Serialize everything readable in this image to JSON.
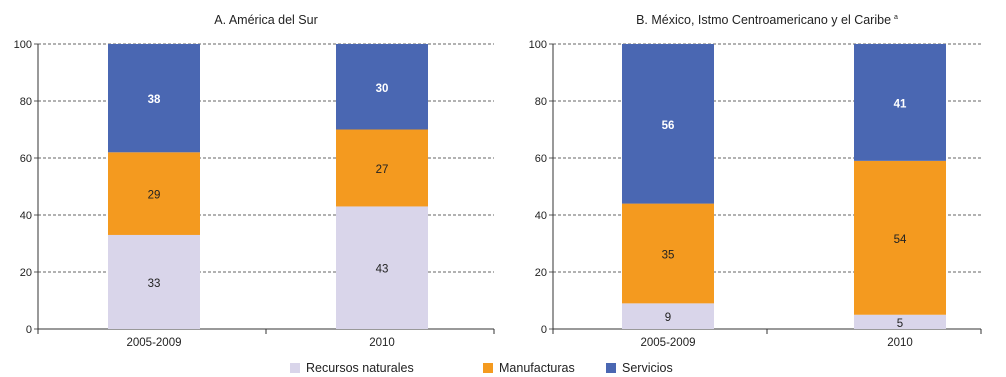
{
  "chart_data": [
    {
      "type": "bar",
      "stacked": true,
      "title": "A. América del Sur",
      "categories": [
        "2005-2009",
        "2010"
      ],
      "ylim": [
        0,
        100
      ],
      "yticks": [
        0,
        20,
        40,
        60,
        80,
        100
      ],
      "grid": true,
      "series": [
        {
          "name": "Recursos naturales",
          "values": [
            33,
            43
          ]
        },
        {
          "name": "Manufacturas",
          "values": [
            29,
            27
          ]
        },
        {
          "name": "Servicios",
          "values": [
            38,
            30
          ]
        }
      ]
    },
    {
      "type": "bar",
      "stacked": true,
      "title": "B. México, Istmo Centroamericano y el Caribe",
      "title_sup": "a",
      "categories": [
        "2005-2009",
        "2010"
      ],
      "ylim": [
        0,
        100
      ],
      "yticks": [
        0,
        20,
        40,
        60,
        80,
        100
      ],
      "grid": true,
      "series": [
        {
          "name": "Recursos naturales",
          "values": [
            9,
            5
          ]
        },
        {
          "name": "Manufacturas",
          "values": [
            35,
            54
          ]
        },
        {
          "name": "Servicios",
          "values": [
            56,
            41
          ]
        }
      ]
    }
  ],
  "legend": {
    "position": "bottom",
    "items": [
      {
        "label": "Recursos naturales",
        "color": "#d9d5ea"
      },
      {
        "label": "Manufacturas",
        "color": "#f49a1f"
      },
      {
        "label": "Servicios",
        "color": "#4a67b2"
      }
    ]
  },
  "colors": {
    "Recursos naturales": "#d9d5ea",
    "Manufacturas": "#f49a1f",
    "Servicios": "#4a67b2"
  }
}
